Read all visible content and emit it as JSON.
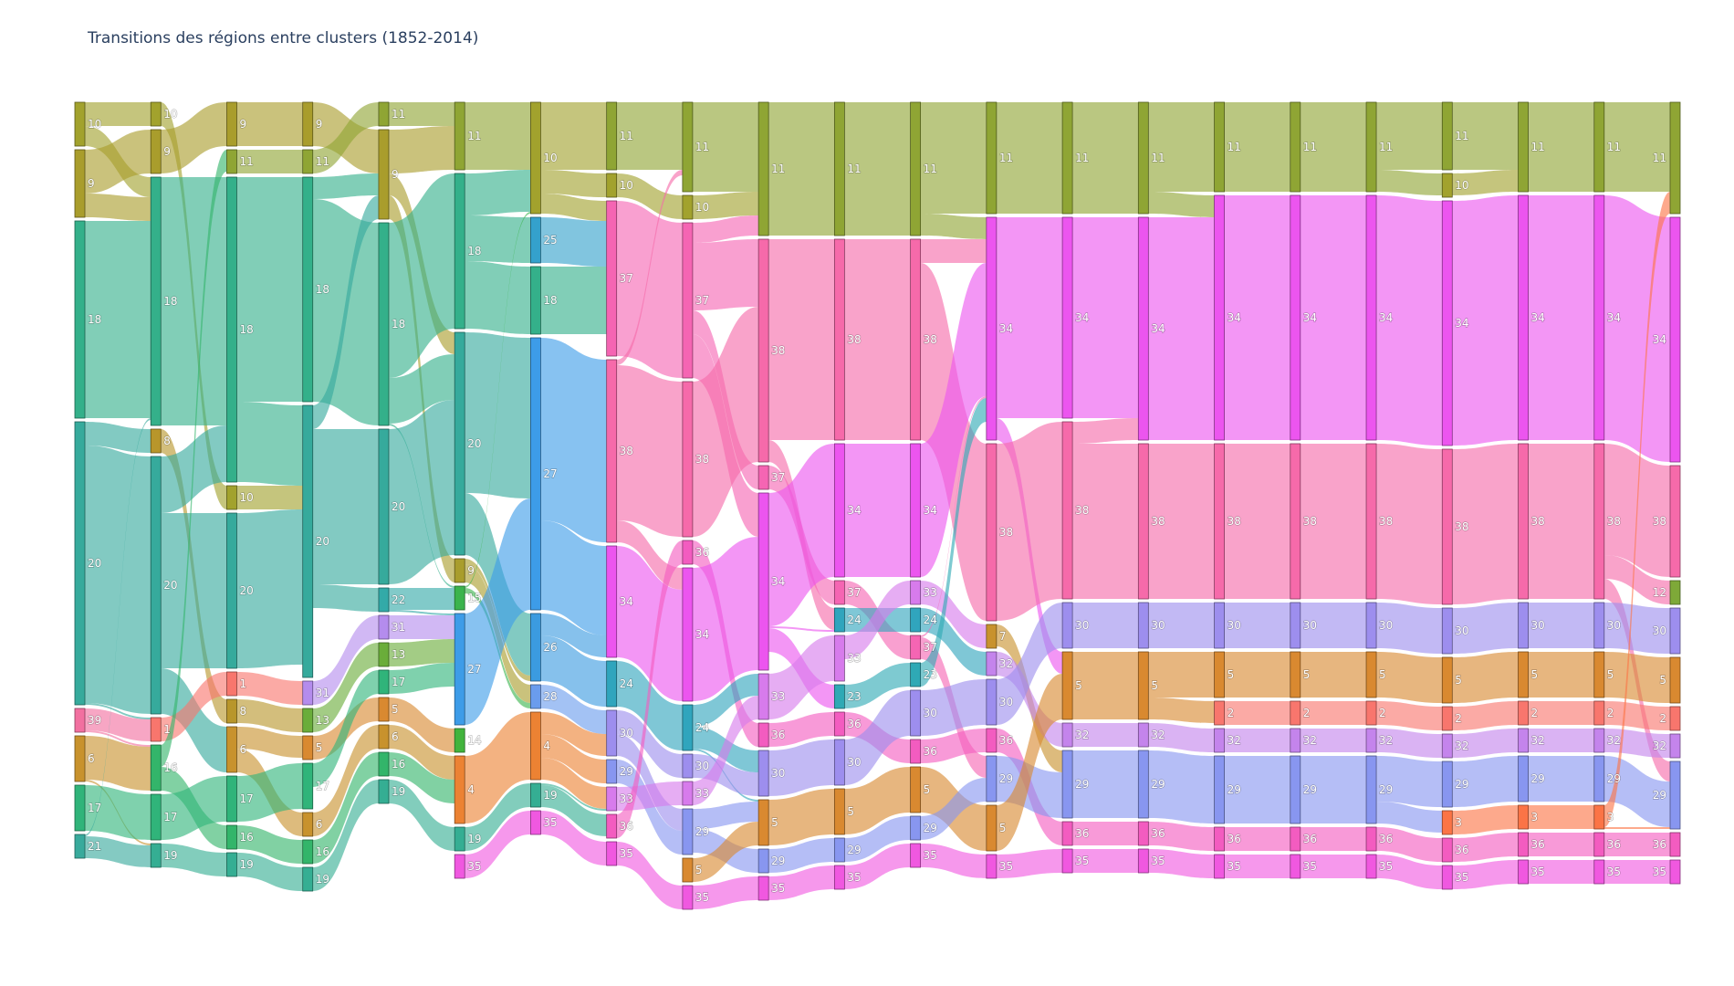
{
  "chart_data": {
    "type": "sankey",
    "title": "Transitions des régions entre clusters (1852-2014)",
    "colors": {
      "1": "#f8766d",
      "2": "#f8766d",
      "3": "#fb7446",
      "4": "#ec8233",
      "5": "#d98930",
      "6": "#c8922d",
      "7": "#c8922d",
      "8": "#b8962b",
      "9": "#a99d2c",
      "10": "#a2a22d",
      "11": "#8fa534",
      "12": "#7ea938",
      "13": "#6aad3a",
      "14": "#42b43c",
      "15": "#3bb44d",
      "16": "#33b56a",
      "17": "#30b47a",
      "18": "#34b08a",
      "19": "#35ae93",
      "20": "#36aa9c",
      "21": "#38aa9c",
      "22": "#33aaa8",
      "23": "#2fa9b5",
      "24": "#30a5bd",
      "25": "#34a1cc",
      "26": "#3b9be0",
      "27": "#3d9ce8",
      "28": "#6a9ced",
      "29": "#8896f0",
      "30": "#9d8eee",
      "31": "#b48ced",
      "32": "#c484ec",
      "33": "#d77bec",
      "34": "#ec55ef",
      "35": "#f058e0",
      "36": "#f35cc0",
      "37": "#f565b3",
      "38": "#f66aaa",
      "39": "#f270a0"
    },
    "columns": [
      [
        [
          "10",
          48
        ],
        [
          "9",
          74
        ],
        [
          "18",
          216
        ],
        [
          "20",
          310
        ],
        [
          "39",
          26
        ],
        [
          "6",
          50
        ],
        [
          "17",
          50
        ],
        [
          "21",
          26
        ]
      ],
      [
        [
          "10",
          26
        ],
        [
          "9",
          48
        ],
        [
          "18",
          272
        ],
        [
          "8",
          26
        ],
        [
          "20",
          282
        ],
        [
          "1",
          26
        ],
        [
          "16",
          50
        ],
        [
          "17",
          50
        ],
        [
          "19",
          26
        ]
      ],
      [
        [
          "9",
          48
        ],
        [
          "11",
          26
        ],
        [
          "18",
          334
        ],
        [
          "10",
          26
        ],
        [
          "20",
          170
        ],
        [
          "1",
          26
        ],
        [
          "8",
          26
        ],
        [
          "6",
          50
        ],
        [
          "17",
          50
        ],
        [
          "16",
          26
        ],
        [
          "19",
          26
        ]
      ],
      [
        [
          "9",
          48
        ],
        [
          "11",
          26
        ],
        [
          "18",
          246
        ],
        [
          "20",
          298
        ],
        [
          "31",
          26
        ],
        [
          "13",
          26
        ],
        [
          "5",
          26
        ],
        [
          "17",
          50
        ],
        [
          "6",
          26
        ],
        [
          "16",
          26
        ],
        [
          "19",
          26
        ]
      ],
      [
        [
          "11",
          26
        ],
        [
          "9",
          98
        ],
        [
          "18",
          222
        ],
        [
          "20",
          170
        ],
        [
          "22",
          26
        ],
        [
          "31",
          26
        ],
        [
          "13",
          26
        ],
        [
          "17",
          26
        ],
        [
          "5",
          26
        ],
        [
          "6",
          26
        ],
        [
          "16",
          26
        ],
        [
          "19",
          26
        ]
      ],
      [
        [
          "11",
          74
        ],
        [
          "18",
          170
        ],
        [
          "20",
          244
        ],
        [
          "9",
          26
        ],
        [
          "15",
          26
        ],
        [
          "27",
          122
        ],
        [
          "14",
          26
        ],
        [
          "4",
          74
        ],
        [
          "19",
          26
        ],
        [
          "35",
          26
        ]
      ],
      [
        [
          "10",
          122
        ],
        [
          "25",
          50
        ],
        [
          "18",
          74
        ],
        [
          "27",
          298
        ],
        [
          "26",
          74
        ],
        [
          "28",
          26
        ],
        [
          "4",
          74
        ],
        [
          "19",
          26
        ],
        [
          "35",
          26
        ]
      ],
      [
        [
          "11",
          74
        ],
        [
          "10",
          26
        ],
        [
          "37",
          170
        ],
        [
          "38",
          200
        ],
        [
          "34",
          122
        ],
        [
          "24",
          50
        ],
        [
          "30",
          50
        ],
        [
          "29",
          26
        ],
        [
          "33",
          26
        ],
        [
          "36",
          26
        ],
        [
          "35",
          26
        ]
      ],
      [
        [
          "11",
          98
        ],
        [
          "10",
          26
        ],
        [
          "37",
          170
        ],
        [
          "38",
          170
        ],
        [
          "36",
          26
        ],
        [
          "34",
          146
        ],
        [
          "24",
          50
        ],
        [
          "30",
          26
        ],
        [
          "33",
          26
        ],
        [
          "29",
          50
        ],
        [
          "5",
          26
        ],
        [
          "35",
          26
        ]
      ],
      [
        [
          "11",
          146
        ],
        [
          "38",
          244
        ],
        [
          "37",
          26
        ],
        [
          "34",
          194
        ],
        [
          "33",
          50
        ],
        [
          "36",
          26
        ],
        [
          "30",
          50
        ],
        [
          "5",
          50
        ],
        [
          "29",
          26
        ],
        [
          "35",
          26
        ]
      ],
      [
        [
          "11",
          146
        ],
        [
          "38",
          220
        ],
        [
          "34",
          146
        ],
        [
          "37",
          26
        ],
        [
          "24",
          26
        ],
        [
          "33",
          50
        ],
        [
          "23",
          26
        ],
        [
          "36",
          26
        ],
        [
          "30",
          50
        ],
        [
          "5",
          50
        ],
        [
          "29",
          26
        ],
        [
          "35",
          26
        ]
      ],
      [
        [
          "11",
          146
        ],
        [
          "38",
          220
        ],
        [
          "34",
          146
        ],
        [
          "33",
          26
        ],
        [
          "24",
          26
        ],
        [
          "37",
          26
        ],
        [
          "23",
          26
        ],
        [
          "30",
          50
        ],
        [
          "36",
          26
        ],
        [
          "5",
          50
        ],
        [
          "29",
          26
        ],
        [
          "35",
          26
        ]
      ],
      [
        [
          "11",
          122
        ],
        [
          "34",
          244
        ],
        [
          "38",
          194
        ],
        [
          "7",
          26
        ],
        [
          "32",
          26
        ],
        [
          "30",
          50
        ],
        [
          "36",
          26
        ],
        [
          "29",
          50
        ],
        [
          "5",
          50
        ],
        [
          "35",
          26
        ]
      ],
      [
        [
          "11",
          122
        ],
        [
          "34",
          220
        ],
        [
          "38",
          194
        ],
        [
          "30",
          50
        ],
        [
          "5",
          74
        ],
        [
          "32",
          26
        ],
        [
          "29",
          74
        ],
        [
          "36",
          26
        ],
        [
          "35",
          26
        ]
      ],
      [
        [
          "11",
          122
        ],
        [
          "34",
          244
        ],
        [
          "38",
          170
        ],
        [
          "30",
          50
        ],
        [
          "5",
          74
        ],
        [
          "32",
          26
        ],
        [
          "29",
          74
        ],
        [
          "36",
          26
        ],
        [
          "35",
          26
        ]
      ],
      [
        [
          "11",
          98
        ],
        [
          "34",
          268
        ],
        [
          "38",
          170
        ],
        [
          "30",
          50
        ],
        [
          "5",
          50
        ],
        [
          "2",
          26
        ],
        [
          "32",
          26
        ],
        [
          "29",
          74
        ],
        [
          "36",
          26
        ],
        [
          "35",
          26
        ]
      ],
      [
        [
          "11",
          98
        ],
        [
          "34",
          268
        ],
        [
          "38",
          170
        ],
        [
          "30",
          50
        ],
        [
          "5",
          50
        ],
        [
          "2",
          26
        ],
        [
          "32",
          26
        ],
        [
          "29",
          74
        ],
        [
          "36",
          26
        ],
        [
          "35",
          26
        ]
      ],
      [
        [
          "11",
          98
        ],
        [
          "34",
          268
        ],
        [
          "38",
          170
        ],
        [
          "30",
          50
        ],
        [
          "5",
          50
        ],
        [
          "2",
          26
        ],
        [
          "32",
          26
        ],
        [
          "29",
          74
        ],
        [
          "36",
          26
        ],
        [
          "35",
          26
        ]
      ],
      [
        [
          "11",
          74
        ],
        [
          "10",
          26
        ],
        [
          "34",
          268
        ],
        [
          "38",
          170
        ],
        [
          "30",
          50
        ],
        [
          "5",
          50
        ],
        [
          "2",
          26
        ],
        [
          "32",
          26
        ],
        [
          "29",
          50
        ],
        [
          "3",
          26
        ],
        [
          "36",
          26
        ],
        [
          "35",
          26
        ]
      ],
      [
        [
          "11",
          98
        ],
        [
          "34",
          268
        ],
        [
          "38",
          170
        ],
        [
          "30",
          50
        ],
        [
          "5",
          50
        ],
        [
          "2",
          26
        ],
        [
          "32",
          26
        ],
        [
          "29",
          50
        ],
        [
          "3",
          26
        ],
        [
          "36",
          26
        ],
        [
          "35",
          26
        ]
      ],
      [
        [
          "11",
          98
        ],
        [
          "34",
          268
        ],
        [
          "38",
          170
        ],
        [
          "30",
          50
        ],
        [
          "5",
          50
        ],
        [
          "2",
          26
        ],
        [
          "32",
          26
        ],
        [
          "29",
          50
        ],
        [
          "3",
          26
        ],
        [
          "36",
          26
        ],
        [
          "35",
          26
        ]
      ],
      [
        [
          "11",
          122
        ],
        [
          "34",
          268
        ],
        [
          "38",
          122
        ],
        [
          "12",
          26
        ],
        [
          "30",
          50
        ],
        [
          "5",
          50
        ],
        [
          "2",
          26
        ],
        [
          "32",
          26
        ],
        [
          "29",
          74
        ],
        [
          "36",
          26
        ],
        [
          "35",
          26
        ]
      ]
    ]
  }
}
